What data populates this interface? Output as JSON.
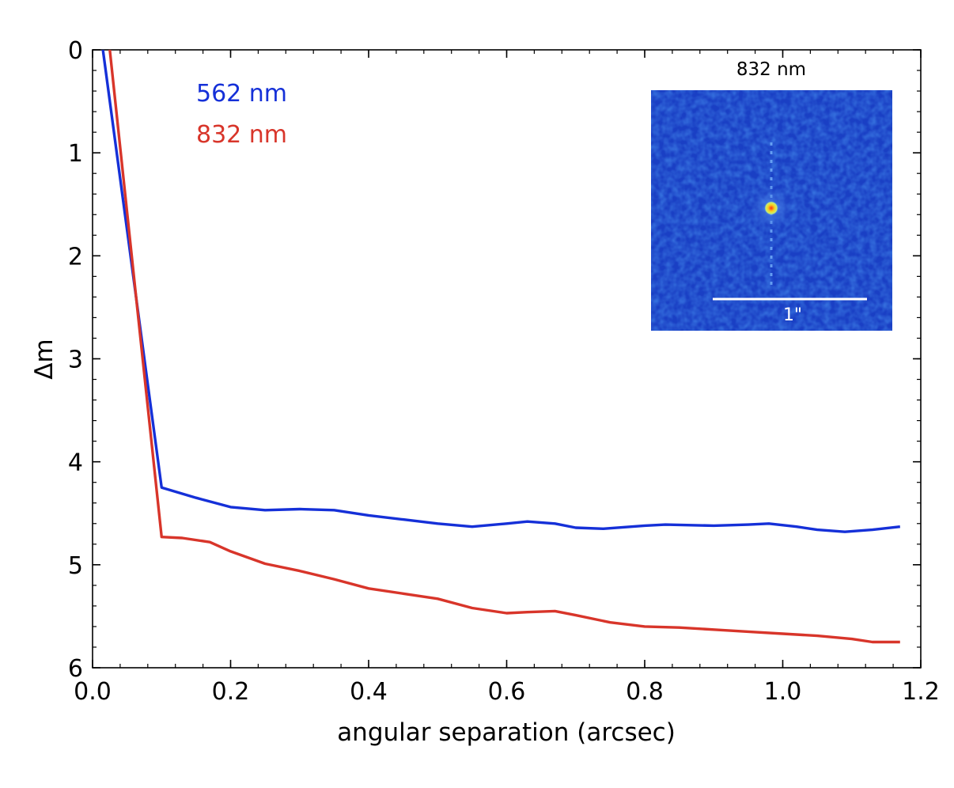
{
  "chart_data": {
    "type": "line",
    "title": "",
    "xlabel": "angular separation (arcsec)",
    "ylabel": "Δm",
    "xlim": [
      0.0,
      1.2
    ],
    "ylim": [
      6,
      0
    ],
    "y_inverted": true,
    "grid": false,
    "legend_position": "top-left",
    "x_ticks": [
      "0.0",
      "0.2",
      "0.4",
      "0.6",
      "0.8",
      "1.0",
      "1.2"
    ],
    "x_tick_values": [
      0.0,
      0.2,
      0.4,
      0.6,
      0.8,
      1.0,
      1.2
    ],
    "y_ticks": [
      "0",
      "1",
      "2",
      "3",
      "4",
      "5",
      "6"
    ],
    "y_tick_values": [
      0,
      1,
      2,
      3,
      4,
      5,
      6
    ],
    "series": [
      {
        "name": "562 nm",
        "color": "#1530d8",
        "x": [
          0.015,
          0.1,
          0.15,
          0.2,
          0.25,
          0.3,
          0.35,
          0.4,
          0.45,
          0.5,
          0.55,
          0.6,
          0.63,
          0.67,
          0.7,
          0.74,
          0.8,
          0.83,
          0.9,
          0.95,
          0.98,
          1.02,
          1.05,
          1.09,
          1.13,
          1.17
        ],
        "values": [
          0,
          4.25,
          4.35,
          4.44,
          4.47,
          4.46,
          4.47,
          4.52,
          4.56,
          4.6,
          4.63,
          4.6,
          4.58,
          4.6,
          4.64,
          4.65,
          4.62,
          4.61,
          4.62,
          4.61,
          4.6,
          4.63,
          4.66,
          4.68,
          4.66,
          4.63
        ]
      },
      {
        "name": "832 nm",
        "color": "#d8352a",
        "x": [
          0.025,
          0.1,
          0.13,
          0.17,
          0.2,
          0.25,
          0.3,
          0.35,
          0.4,
          0.45,
          0.5,
          0.55,
          0.6,
          0.63,
          0.67,
          0.7,
          0.75,
          0.8,
          0.85,
          0.9,
          0.95,
          1.0,
          1.05,
          1.1,
          1.13,
          1.17
        ],
        "values": [
          0,
          4.73,
          4.74,
          4.78,
          4.87,
          4.99,
          5.06,
          5.14,
          5.23,
          5.28,
          5.33,
          5.42,
          5.47,
          5.46,
          5.45,
          5.49,
          5.56,
          5.6,
          5.61,
          5.63,
          5.65,
          5.67,
          5.69,
          5.72,
          5.75,
          5.75
        ]
      }
    ],
    "inset": {
      "title": "832 nm",
      "scale_bar_label": "1\"",
      "image_color": "#1a3fc4",
      "center_color": "#f0c020"
    }
  }
}
